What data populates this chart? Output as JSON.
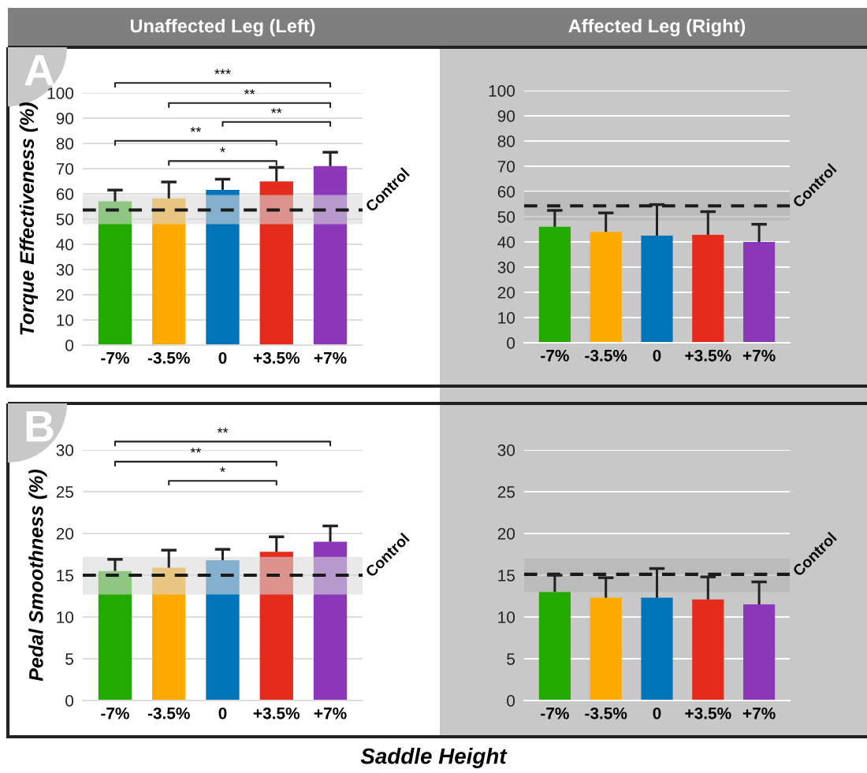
{
  "chart_data": [
    {
      "type": "bar",
      "title": "Unaffected Leg (Left)",
      "ylabel": "Torque Effectiveness (%)",
      "annotations": [
        "A",
        "***",
        "**",
        "**",
        "**",
        "*"
      ],
      "categories": [
        "-7%",
        "-3.5%",
        "0",
        "+3.5%",
        "+7%"
      ],
      "values": [
        57,
        58.2,
        61.6,
        64.9,
        71.0
      ],
      "colors": [
        "#22aa00",
        "#ffaa00",
        "#0074bb",
        "#e42b1c",
        "#8a37b8"
      ],
      "errors": [
        [
          57,
          61.5
        ],
        [
          58.2,
          64.7
        ],
        [
          61.6,
          65.8
        ],
        [
          64.9,
          70.5
        ],
        [
          71.0,
          76.5
        ]
      ],
      "ylim": [
        0,
        100
      ],
      "yticks": [
        0,
        10,
        20,
        30,
        40,
        50,
        60,
        70,
        80,
        90,
        100
      ],
      "grid": "y",
      "ref_lines": [
        {
          "axis": "y",
          "value": 53.6,
          "label": "Control",
          "color": "#1a1a1a",
          "line_style": "dashed"
        }
      ],
      "bands": [
        {
          "axis": "y",
          "from": 48,
          "to": 59.5,
          "color": "#d9d9d9"
        }
      ]
    },
    {
      "type": "bar",
      "title": "Affected Leg (Right)",
      "categories": [
        "-7%",
        "-3.5%",
        "0",
        "+3.5%",
        "+7%"
      ],
      "values": [
        46,
        44,
        42.5,
        42.8,
        40
      ],
      "colors": [
        "#22aa00",
        "#ffaa00",
        "#0074bb",
        "#e42b1c",
        "#8a37b8"
      ],
      "errors": [
        [
          46,
          52.5
        ],
        [
          44,
          51.5
        ],
        [
          42.5,
          54.8
        ],
        [
          42.8,
          52
        ],
        [
          40,
          47
        ]
      ],
      "ylim": [
        0,
        100
      ],
      "yticks": [
        0,
        10,
        20,
        30,
        40,
        50,
        60,
        70,
        80,
        90,
        100
      ],
      "grid": "y",
      "ref_lines": [
        {
          "axis": "y",
          "value": 54.3,
          "label": "Control",
          "color": "#1a1a1a",
          "line_style": "dashed"
        }
      ],
      "bands": [
        {
          "axis": "y",
          "from": 48.5,
          "to": 60,
          "color": "#b3b3b3"
        }
      ]
    },
    {
      "type": "bar",
      "xlabel": "Saddle Height",
      "ylabel": "Pedal Smoothness (%)",
      "annotations": [
        "B",
        "**",
        "**",
        "*"
      ],
      "categories": [
        "-7%",
        "-3.5%",
        "0",
        "+3.5%",
        "+7%"
      ],
      "values": [
        15.5,
        15.9,
        16.8,
        17.8,
        19.0
      ],
      "colors": [
        "#22aa00",
        "#ffaa00",
        "#0074bb",
        "#e42b1c",
        "#8a37b8"
      ],
      "errors": [
        [
          15.5,
          16.9
        ],
        [
          15.9,
          18.0
        ],
        [
          16.8,
          18.1
        ],
        [
          17.8,
          19.6
        ],
        [
          19.0,
          20.9
        ]
      ],
      "ylim": [
        0,
        30
      ],
      "yticks": [
        0,
        5,
        10,
        15,
        20,
        25,
        30
      ],
      "grid": "y",
      "ref_lines": [
        {
          "axis": "y",
          "value": 15.0,
          "label": "Control",
          "color": "#1a1a1a",
          "line_style": "dashed"
        }
      ],
      "bands": [
        {
          "axis": "y",
          "from": 12.7,
          "to": 17.2,
          "color": "#d9d9d9"
        }
      ]
    },
    {
      "type": "bar",
      "categories": [
        "-7%",
        "-3.5%",
        "0",
        "+3.5%",
        "+7%"
      ],
      "values": [
        13.0,
        12.3,
        12.3,
        12.1,
        11.5
      ],
      "colors": [
        "#22aa00",
        "#ffaa00",
        "#0074bb",
        "#e42b1c",
        "#8a37b8"
      ],
      "errors": [
        [
          13.0,
          15.0
        ],
        [
          12.3,
          14.7
        ],
        [
          12.3,
          15.8
        ],
        [
          12.1,
          14.8
        ],
        [
          11.5,
          14.2
        ]
      ],
      "ylim": [
        0,
        30
      ],
      "yticks": [
        0,
        5,
        10,
        15,
        20,
        25,
        30
      ],
      "grid": "y",
      "ref_lines": [
        {
          "axis": "y",
          "value": 15.1,
          "label": "Control",
          "color": "#1a1a1a",
          "line_style": "dashed"
        }
      ],
      "bands": [
        {
          "axis": "y",
          "from": 13.0,
          "to": 17.0,
          "color": "#b3b3b3"
        }
      ]
    }
  ]
}
